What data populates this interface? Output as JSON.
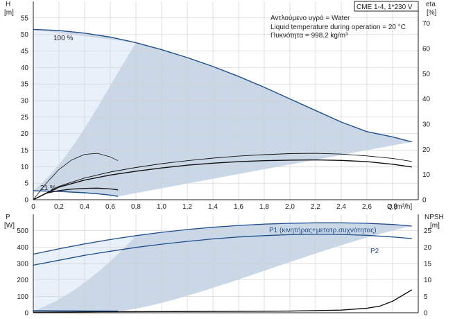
{
  "chart_data": [
    {
      "type": "line",
      "id": "top",
      "model": "CME 1-4, 1*230 V",
      "info_lines": [
        "Αντλούμενο υγρό = Water",
        "Liquid temperature during operation = 20 °C",
        "Πυκνότητα = 998.2 kg/m³"
      ],
      "ylabel_left": "H",
      "ylabel_left_unit": "[m]",
      "ylabel_right": "eta",
      "ylabel_right_unit": "[%]",
      "xlabel": "Q [m³/h]",
      "xlim": [
        0,
        3.0
      ],
      "ylim_left": [
        0,
        60
      ],
      "ylim_right": [
        0,
        78.7
      ],
      "x_ticks": [
        "0",
        "0,2",
        "0,4",
        "0,6",
        "0,8",
        "1,0",
        "1,2",
        "1,4",
        "1,6",
        "1,8",
        "2,0",
        "2,2",
        "2,4",
        "2,6",
        "2,8"
      ],
      "y_ticks_left": [
        "0",
        "5",
        "10",
        "15",
        "20",
        "25",
        "30",
        "35",
        "40",
        "45",
        "50",
        "55"
      ],
      "y_ticks_right": [
        "0",
        "10",
        "20",
        "30",
        "40",
        "50",
        "60",
        "70"
      ],
      "curve_labels": [
        "100 %",
        "21 %"
      ],
      "grid": true,
      "series": [
        {
          "x": [
            0,
            0.2,
            0.4,
            0.6,
            0.8,
            1.0,
            1.2,
            1.4,
            1.6,
            1.8,
            2.0,
            2.2,
            2.4,
            2.6,
            2.8,
            2.95
          ],
          "y": [
            51.5,
            51.2,
            50.4,
            49.2,
            47.5,
            45.4,
            43.0,
            40.3,
            37.3,
            34.0,
            30.5,
            27.0,
            23.5,
            20.6,
            19.0,
            17.5
          ]
        },
        {
          "x": [
            0,
            0.1,
            0.2,
            0.3,
            0.4,
            0.5,
            0.6,
            0.66
          ],
          "y": [
            2.7,
            2.6,
            2.5,
            2.3,
            2.1,
            1.8,
            1.4,
            1.0
          ]
        },
        {
          "x": [
            0,
            0.1,
            0.2,
            0.3,
            0.4,
            0.5,
            0.6,
            0.66
          ],
          "y": [
            0,
            6.5,
            12.0,
            15.8,
            18.0,
            18.4,
            17.0,
            15.5
          ]
        },
        {
          "x": [
            0,
            0.2,
            0.4,
            0.6,
            0.8,
            1.0,
            1.2,
            1.4,
            1.6,
            1.8,
            2.0,
            2.2,
            2.4,
            2.6,
            2.8,
            2.95
          ],
          "y": [
            0,
            5.3,
            8.6,
            11.0,
            12.8,
            14.3,
            15.5,
            16.5,
            17.3,
            17.9,
            18.3,
            18.4,
            18.1,
            17.4,
            16.4,
            15.2
          ]
        },
        {
          "x": [
            0,
            0.2,
            0.4,
            0.6,
            0.8,
            1.0,
            1.2,
            1.4,
            1.6,
            1.8,
            2.0,
            2.2,
            2.4,
            2.6,
            2.8,
            2.95
          ],
          "y": [
            0,
            5.0,
            7.8,
            9.8,
            11.3,
            12.6,
            13.7,
            14.5,
            15.1,
            15.5,
            15.7,
            15.8,
            15.6,
            15.1,
            14.1,
            13.0
          ]
        },
        {
          "x": [
            0,
            0.1,
            0.2,
            0.3,
            0.4,
            0.5,
            0.6,
            0.66
          ],
          "y": [
            0,
            2.6,
            3.6,
            4.2,
            4.5,
            4.6,
            4.3,
            3.9
          ]
        }
      ]
    },
    {
      "type": "line",
      "id": "bottom",
      "ylabel_left": "P",
      "ylabel_left_unit": "[W]",
      "ylabel_right": "NPSH",
      "ylabel_right_unit": "[m]",
      "xlim": [
        0,
        3.0
      ],
      "ylim_left": [
        0,
        600
      ],
      "ylim_right": [
        0,
        30
      ],
      "y_ticks_left": [
        "0",
        "100",
        "200",
        "300",
        "400",
        "500"
      ],
      "y_ticks_right": [
        "0",
        "5",
        "10",
        "15",
        "20",
        "25"
      ],
      "grid": true,
      "series": [
        {
          "name": "P1 (κινητήρας+μετατρ.συχνότητας)",
          "x": [
            0,
            0.2,
            0.4,
            0.6,
            0.8,
            1.0,
            1.2,
            1.4,
            1.6,
            1.8,
            2.0,
            2.2,
            2.4,
            2.6,
            2.8,
            2.95
          ],
          "y": [
            357,
            390,
            420,
            446,
            470,
            490,
            507,
            521,
            532,
            540,
            545,
            548,
            548,
            545,
            538,
            528
          ]
        },
        {
          "name": "P2",
          "x": [
            0,
            0.2,
            0.4,
            0.6,
            0.8,
            1.0,
            1.2,
            1.4,
            1.6,
            1.8,
            2.0,
            2.2,
            2.4,
            2.6,
            2.8,
            2.95
          ],
          "y": [
            290,
            320,
            350,
            375,
            398,
            418,
            435,
            450,
            462,
            470,
            476,
            478,
            477,
            472,
            462,
            452
          ]
        },
        {
          "x": [
            0,
            0.1,
            0.2,
            0.3,
            0.4,
            0.5,
            0.6,
            0.66
          ],
          "y": [
            13,
            13,
            12,
            12,
            11,
            11,
            10,
            10
          ]
        },
        {
          "x": [
            0,
            0.5,
            1.0,
            1.5,
            2.0,
            2.4,
            2.6,
            2.7,
            2.8,
            2.9,
            2.95
          ],
          "y": [
            0.2,
            0.3,
            0.35,
            0.4,
            0.5,
            0.8,
            1.4,
            2.0,
            3.5,
            5.8,
            7.0
          ]
        }
      ]
    }
  ],
  "colors": {
    "region_dark": "#c9d7e6",
    "region_light": "#e8f0fa",
    "curve_blue": "#1f4f8b",
    "curve_black": "#111111",
    "grid": "#d2d2d2"
  }
}
